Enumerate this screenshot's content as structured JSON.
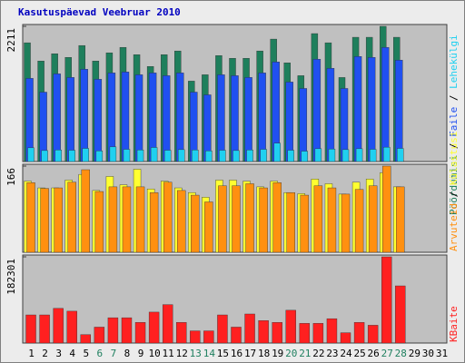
{
  "title": "Kasutuspäevad Veebruar 2010",
  "legend_separator": " / ",
  "chart_data": [
    {
      "type": "bar",
      "ylim": [
        0,
        2211
      ],
      "yticks": [
        2211
      ],
      "series": [
        {
          "name": "Pöördumisi",
          "color": "#1e7f5c",
          "values": [
            1942,
            1643,
            1763,
            1703,
            1897,
            1643,
            1778,
            1867,
            1748,
            1554,
            1748,
            1808,
            1315,
            1419,
            1733,
            1688,
            1688,
            1808,
            2002,
            1613,
            1404,
            2092,
            1942,
            1374,
            2032,
            2032,
            2211,
            2032,
            null,
            null,
            null
          ]
        },
        {
          "name": "Faile",
          "color": "#2050f0",
          "values": [
            1360,
            1135,
            1434,
            1375,
            1509,
            1345,
            1449,
            1464,
            1419,
            1449,
            1404,
            1449,
            1135,
            1091,
            1419,
            1404,
            1375,
            1449,
            1628,
            1300,
            1195,
            1673,
            1524,
            1195,
            1718,
            1703,
            1867,
            1658,
            null,
            null,
            null
          ]
        },
        {
          "name": "Lehekülgi",
          "color": "#20d0f0",
          "values": [
            225,
            180,
            190,
            185,
            215,
            175,
            240,
            200,
            190,
            230,
            185,
            195,
            190,
            175,
            185,
            180,
            190,
            200,
            300,
            185,
            170,
            210,
            205,
            195,
            210,
            200,
            235,
            215,
            null,
            null,
            null
          ]
        }
      ]
    },
    {
      "type": "bar",
      "ylim": [
        0,
        166
      ],
      "yticks": [
        166
      ],
      "legend_reversed": true,
      "series": [
        {
          "name": "Külastusi",
          "color": "#ffff30",
          "values": [
            137,
            124,
            124,
            139,
            150,
            119,
            146,
            130,
            160,
            122,
            137,
            124,
            115,
            106,
            139,
            139,
            137,
            126,
            137,
            115,
            113,
            141,
            132,
            112,
            135,
            141,
            153,
            126,
            null,
            null,
            null
          ]
        },
        {
          "name": "Arvuteid",
          "color": "#ff9010",
          "values": [
            134,
            123,
            124,
            135,
            159,
            117,
            126,
            126,
            126,
            115,
            135,
            119,
            110,
            97,
            128,
            128,
            132,
            124,
            134,
            115,
            110,
            128,
            124,
            112,
            121,
            128,
            166,
            126,
            null,
            null,
            null
          ]
        }
      ]
    },
    {
      "type": "bar",
      "ylim": [
        0,
        182301
      ],
      "yticks": [
        182301
      ],
      "series": [
        {
          "name": "KBaite",
          "color": "#ff2020",
          "values": [
            59445,
            59445,
            73300,
            67360,
            17830,
            33680,
            53500,
            53500,
            43590,
            65390,
            81240,
            43590,
            25760,
            25760,
            59445,
            33680,
            61420,
            47550,
            43590,
            69340,
            41600,
            41600,
            51510,
            21790,
            43590,
            37640,
            182301,
            120860,
            null,
            null,
            null
          ]
        }
      ],
      "categories": [
        "1",
        "2",
        "3",
        "4",
        "5",
        "6",
        "7",
        "8",
        "9",
        "10",
        "11",
        "12",
        "13",
        "14",
        "15",
        "16",
        "17",
        "18",
        "19",
        "20",
        "21",
        "22",
        "23",
        "24",
        "25",
        "26",
        "27",
        "28",
        "29",
        "30",
        "31"
      ],
      "category_colors": [
        "#000000",
        "#000000",
        "#000000",
        "#000000",
        "#000000",
        "#208060",
        "#208060",
        "#000000",
        "#000000",
        "#000000",
        "#000000",
        "#000000",
        "#208060",
        "#208060",
        "#000000",
        "#000000",
        "#000000",
        "#000000",
        "#000000",
        "#208060",
        "#208060",
        "#000000",
        "#000000",
        "#000000",
        "#000000",
        "#000000",
        "#208060",
        "#208060",
        "#000000",
        "#000000",
        "#000000"
      ]
    }
  ]
}
